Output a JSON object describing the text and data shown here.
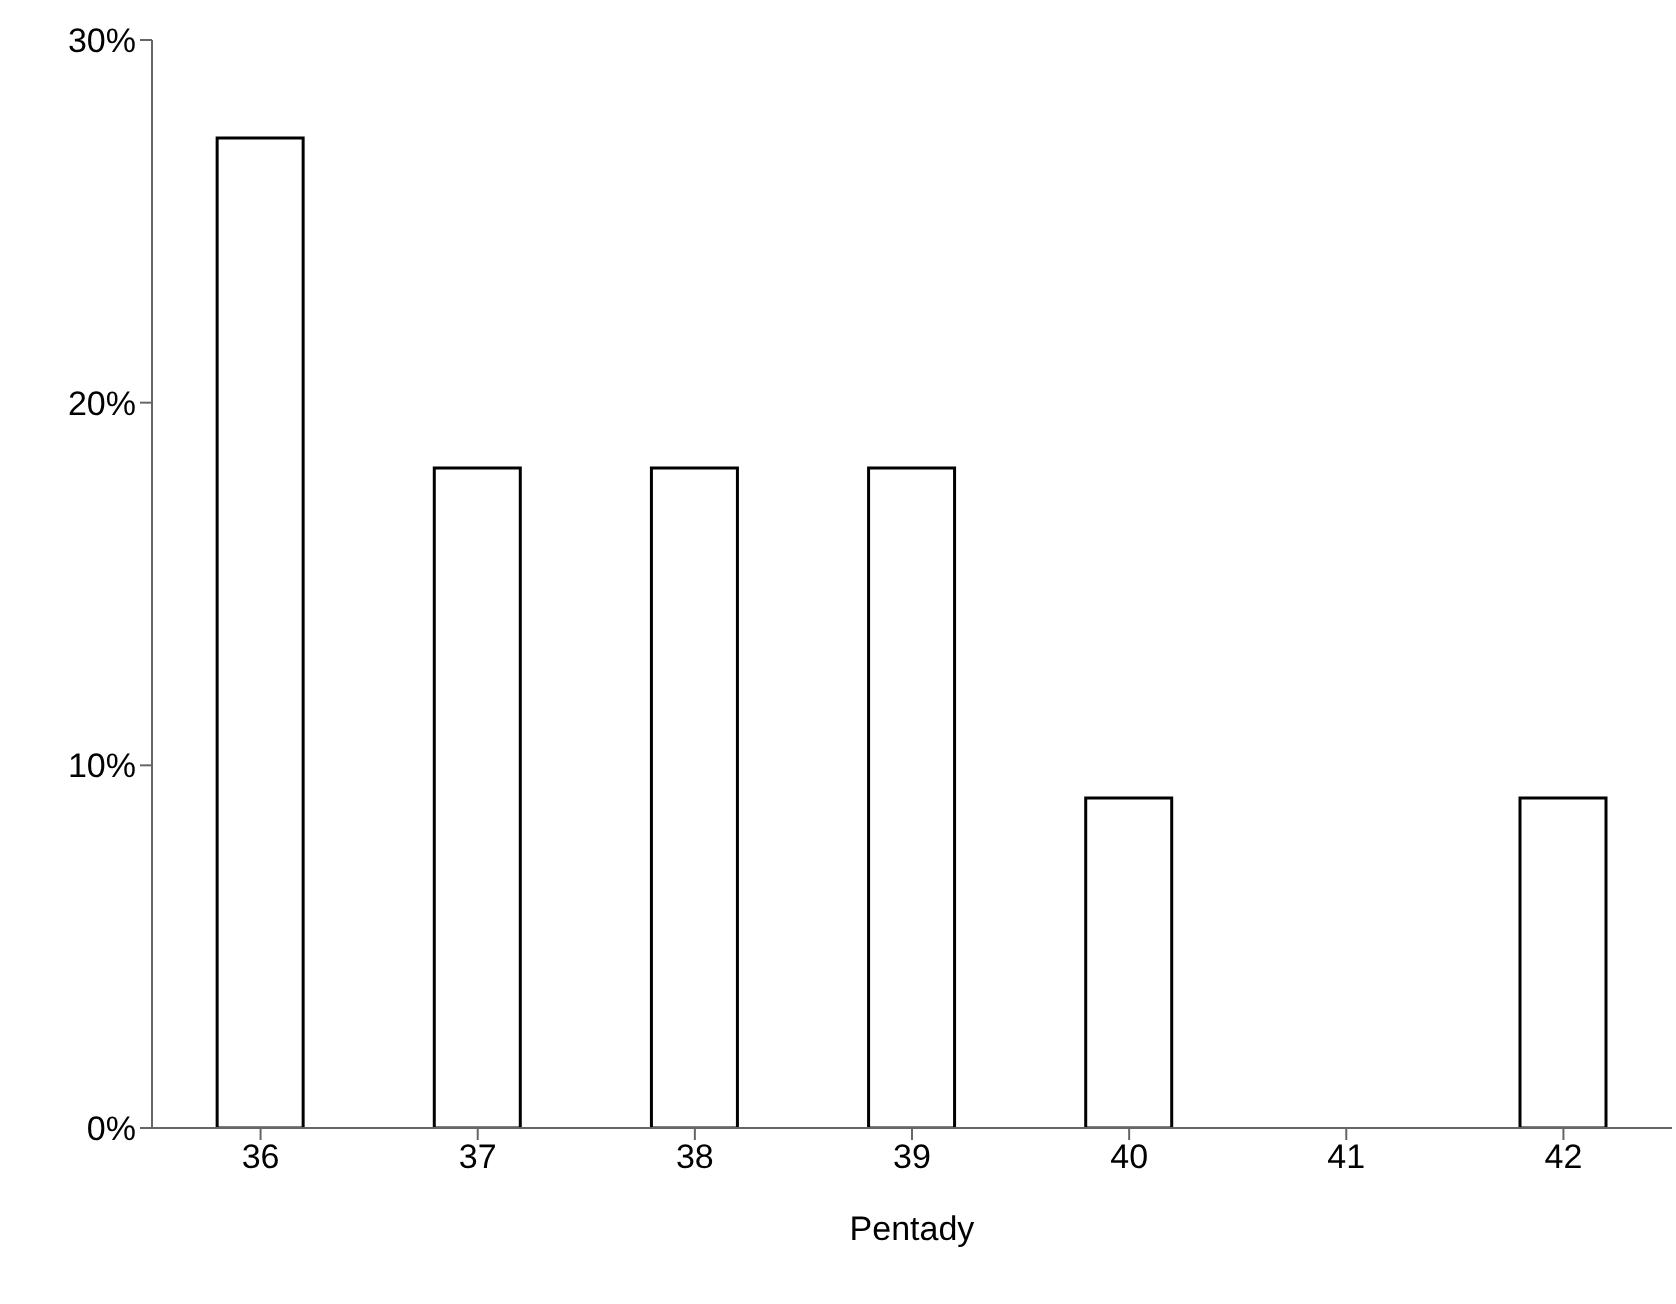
{
  "chart_data": {
    "type": "bar",
    "xlabel": "Pentady",
    "categories": [
      "36",
      "37",
      "38",
      "39",
      "40",
      "41",
      "42"
    ],
    "values": [
      27.3,
      18.2,
      18.2,
      18.2,
      9.1,
      0,
      9.1
    ],
    "color": "#ffffff",
    "ylim": [
      0,
      30
    ],
    "yticks": [
      {
        "value": 0,
        "label": "0%"
      },
      {
        "value": 10,
        "label": "10%"
      },
      {
        "value": 20,
        "label": "20%"
      },
      {
        "value": 30,
        "label": "30%"
      }
    ],
    "grid": false,
    "legend": false
  }
}
